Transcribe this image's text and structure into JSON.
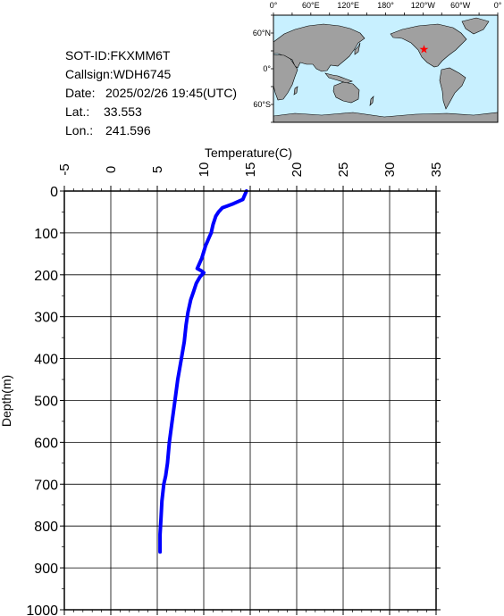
{
  "info": {
    "sot_id": "SOT-ID:FKXMM6T",
    "callsign": "Callsign:WDH6745",
    "date_label": "Date:",
    "date_value": "2025/02/26 19:45(UTC)",
    "lat_label": "Lat.:",
    "lat_value": "33.553",
    "lon_label": "Lon.:",
    "lon_value": "241.596"
  },
  "map": {
    "top_labels": [
      "0°",
      "60°E",
      "120°E",
      "180°",
      "120°W",
      "60°W",
      "0°"
    ],
    "left_labels": [
      "60°N",
      "0°",
      "60°S"
    ],
    "ocean_color": "#c8f0ff",
    "land_color": "#a0a0a0",
    "marker_color": "#ff0000",
    "marker_lon": 241.596,
    "marker_lat": 33.553
  },
  "chart_data": {
    "type": "line",
    "xlabel": "Temperature(C)",
    "ylabel": "Depth(m)",
    "xlim": [
      -5,
      35
    ],
    "ylim": [
      0,
      1000
    ],
    "x_ticks": [
      "-5",
      "0",
      "5",
      "10",
      "15",
      "20",
      "25",
      "30",
      "35"
    ],
    "y_ticks": [
      "0",
      "100",
      "200",
      "300",
      "400",
      "500",
      "600",
      "700",
      "800",
      "900",
      "1000"
    ],
    "grid": true,
    "series": [
      {
        "color": "#0000ff",
        "temperature": [
          14.6,
          14.2,
          13.2,
          12.0,
          11.6,
          11.3,
          11.0,
          10.8,
          10.6,
          10.4,
          10.2,
          10.0,
          9.8,
          9.5,
          9.3,
          9.7,
          10.0,
          9.6,
          9.2,
          8.9,
          8.6,
          8.3,
          8.1,
          7.9,
          7.6,
          7.2,
          6.9,
          6.6,
          6.3,
          6.1,
          5.9,
          5.7,
          5.5,
          5.4,
          5.3,
          5.3,
          5.3
        ],
        "depth": [
          0,
          20,
          30,
          40,
          50,
          60,
          80,
          100,
          110,
          120,
          130,
          145,
          160,
          175,
          185,
          190,
          195,
          205,
          220,
          240,
          260,
          290,
          320,
          360,
          400,
          450,
          500,
          550,
          600,
          650,
          680,
          700,
          740,
          780,
          820,
          850,
          862
        ]
      }
    ]
  }
}
